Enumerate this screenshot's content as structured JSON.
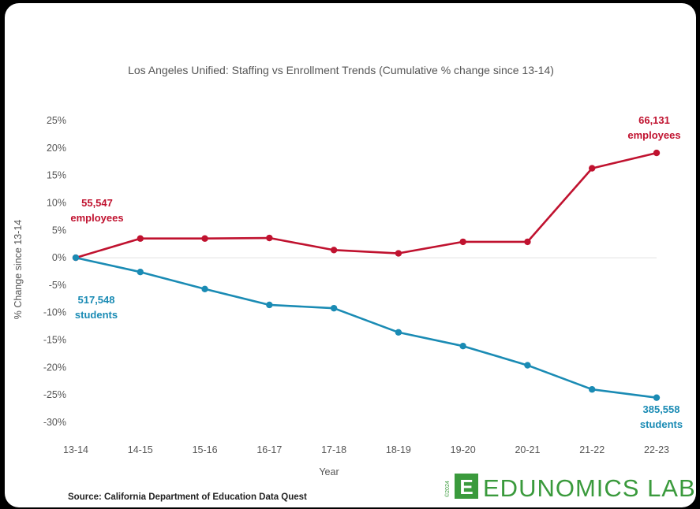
{
  "chart_data": {
    "type": "line",
    "title": "Los Angeles Unified: Staffing vs Enrollment Trends (Cumulative % change since 13-14)",
    "xlabel": "Year",
    "ylabel": "% Change since 13-14",
    "categories": [
      "13-14",
      "14-15",
      "15-16",
      "16-17",
      "17-18",
      "18-19",
      "19-20",
      "20-21",
      "21-22",
      "22-23"
    ],
    "ylim": [
      -30,
      25
    ],
    "yticks": [
      25,
      20,
      15,
      10,
      5,
      0,
      -5,
      -10,
      -15,
      -20,
      -25,
      -30
    ],
    "ytick_labels": [
      "25%",
      "20%",
      "15%",
      "10%",
      "5%",
      "0%",
      "-5%",
      "-10%",
      "-15%",
      "-20%",
      "-25%",
      "-30%"
    ],
    "series": [
      {
        "name": "employees",
        "color": "#c0122f",
        "values": [
          0,
          3.5,
          3.5,
          3.6,
          1.4,
          0.8,
          2.9,
          2.9,
          16.3,
          19.1
        ]
      },
      {
        "name": "students",
        "color": "#1a8bb4",
        "values": [
          0,
          -2.6,
          -5.7,
          -8.6,
          -9.2,
          -13.6,
          -16.1,
          -19.6,
          -24.0,
          -25.5
        ]
      }
    ],
    "annotations": [
      {
        "series": "employees",
        "at": "13-14",
        "lines": [
          "55,547",
          "employees"
        ]
      },
      {
        "series": "employees",
        "at": "22-23",
        "lines": [
          "66,131",
          "employees"
        ]
      },
      {
        "series": "students",
        "at": "13-14",
        "lines": [
          "517,548",
          "students"
        ]
      },
      {
        "series": "students",
        "at": "22-23",
        "lines": [
          "385,558",
          "students"
        ]
      }
    ]
  },
  "source": "Source: California Department of Education Data Quest",
  "brand": {
    "name": "EDUNOMICS LAB",
    "letter": "E",
    "year": "©2024",
    "color": "#3a9a3c"
  }
}
